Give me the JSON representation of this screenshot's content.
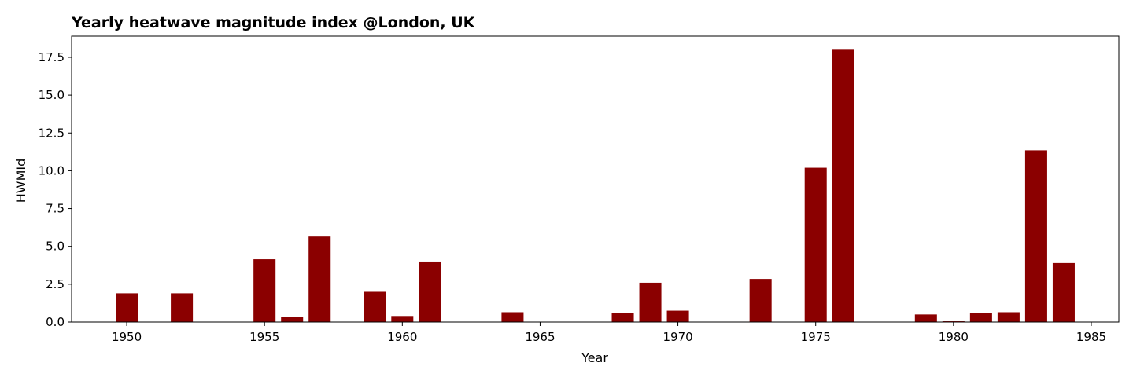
{
  "chart_data": {
    "type": "bar",
    "title": "Yearly heatwave magnitude index @London, UK",
    "xlabel": "Year",
    "ylabel": "HWMId",
    "xlim": [
      1948,
      1986
    ],
    "ylim": [
      0,
      18.9
    ],
    "x_ticks": [
      1950,
      1955,
      1960,
      1965,
      1970,
      1975,
      1980,
      1985
    ],
    "y_ticks": [
      "0.0",
      "2.5",
      "5.0",
      "7.5",
      "10.0",
      "12.5",
      "15.0",
      "17.5"
    ],
    "grid": false,
    "bar_color": "#8b0000",
    "x": [
      1950,
      1952,
      1955,
      1956,
      1957,
      1959,
      1960,
      1961,
      1964,
      1968,
      1969,
      1970,
      1973,
      1975,
      1976,
      1979,
      1980,
      1981,
      1982,
      1983,
      1984
    ],
    "values": [
      1.9,
      1.9,
      4.15,
      0.35,
      5.65,
      2.0,
      0.4,
      4.0,
      0.65,
      0.6,
      2.6,
      0.75,
      2.85,
      10.2,
      18.0,
      0.5,
      0.05,
      0.6,
      0.65,
      11.35,
      3.9
    ]
  }
}
